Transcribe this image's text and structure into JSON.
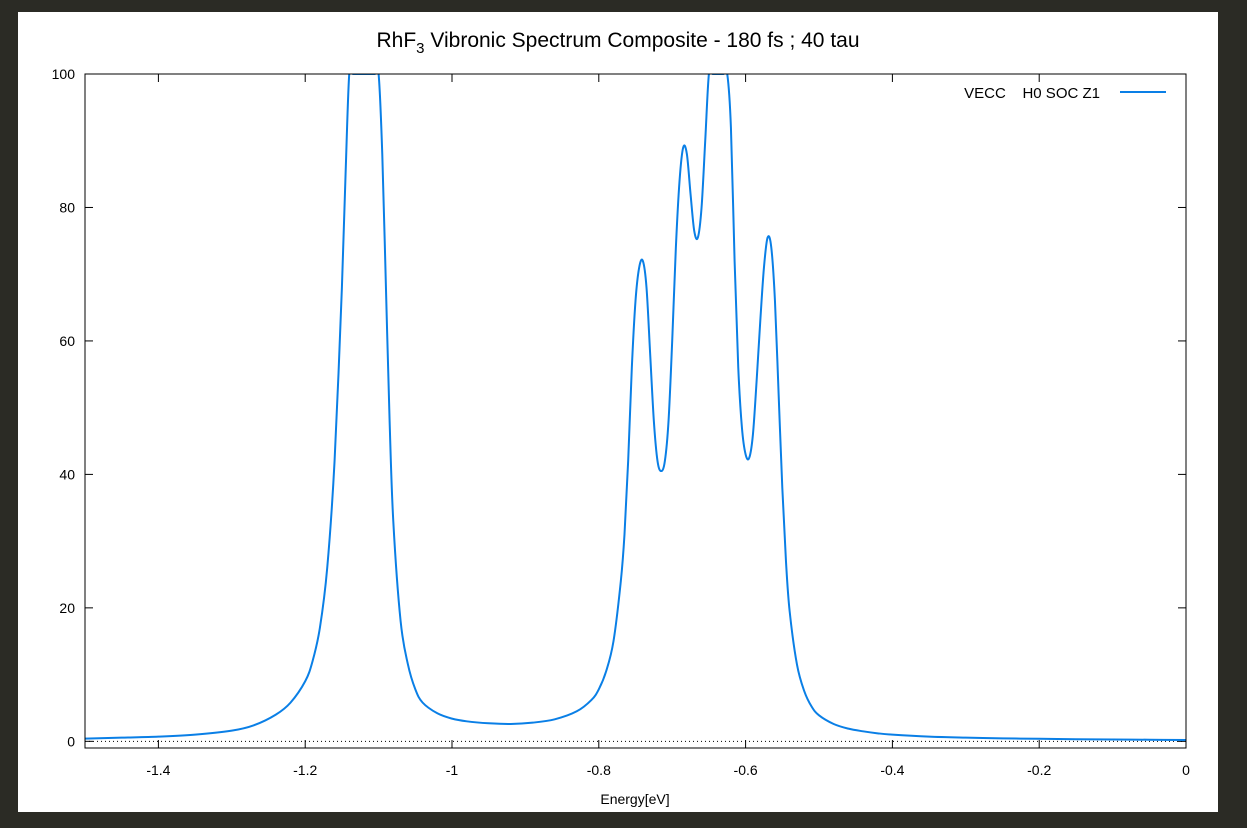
{
  "window": {
    "background": "#2b2b25",
    "panel_background": "#ffffff"
  },
  "chart_data": {
    "type": "line",
    "title_main": "RhF",
    "title_sub": "3",
    "title_rest": " Vibronic Spectrum Composite - 180 fs ; 40 tau",
    "xlabel": "Energy[eV]",
    "ylabel": "",
    "xlim": [
      -1.5,
      0.0
    ],
    "ylim": [
      -1,
      100
    ],
    "x_ticks": [
      -1.4,
      -1.2,
      -1.0,
      -0.8,
      -0.6,
      -0.4,
      -0.2,
      0.0
    ],
    "x_tick_labels": [
      "-1.4",
      "-1.2",
      "-1",
      "-0.8",
      "-0.6",
      "-0.4",
      "-0.2",
      "0"
    ],
    "y_ticks": [
      0,
      20,
      40,
      60,
      80,
      100
    ],
    "y_tick_labels": [
      "0",
      "20",
      "40",
      "60",
      "80",
      "100"
    ],
    "grid": false,
    "zero_line": true,
    "legend_position": "top-right",
    "series": [
      {
        "name": "VECC    H0 SOC Z1",
        "color": "#0a7fe6",
        "x": [
          -1.5,
          -1.45,
          -1.4,
          -1.35,
          -1.3,
          -1.27,
          -1.24,
          -1.22,
          -1.2,
          -1.19,
          -1.18,
          -1.17,
          -1.16,
          -1.15,
          -1.145,
          -1.14,
          -1.135,
          -1.13,
          -1.125,
          -1.115,
          -1.105,
          -1.1,
          -1.095,
          -1.09,
          -1.085,
          -1.08,
          -1.07,
          -1.06,
          -1.05,
          -1.04,
          -1.02,
          -1.0,
          -0.98,
          -0.95,
          -0.92,
          -0.89,
          -0.86,
          -0.83,
          -0.81,
          -0.8,
          -0.79,
          -0.78,
          -0.77,
          -0.765,
          -0.76,
          -0.755,
          -0.75,
          -0.745,
          -0.74,
          -0.735,
          -0.73,
          -0.725,
          -0.72,
          -0.715,
          -0.71,
          -0.705,
          -0.7,
          -0.695,
          -0.69,
          -0.685,
          -0.68,
          -0.675,
          -0.67,
          -0.665,
          -0.66,
          -0.655,
          -0.65,
          -0.645,
          -0.64,
          -0.635,
          -0.63,
          -0.625,
          -0.62,
          -0.615,
          -0.61,
          -0.605,
          -0.6,
          -0.595,
          -0.59,
          -0.585,
          -0.58,
          -0.575,
          -0.57,
          -0.565,
          -0.56,
          -0.555,
          -0.55,
          -0.545,
          -0.54,
          -0.53,
          -0.52,
          -0.51,
          -0.5,
          -0.48,
          -0.46,
          -0.44,
          -0.42,
          -0.4,
          -0.35,
          -0.3,
          -0.25,
          -0.2,
          -0.15,
          -0.1,
          -0.05,
          0.0
        ],
        "y": [
          0.4,
          0.55,
          0.7,
          1.0,
          1.6,
          2.4,
          4.0,
          5.8,
          9.0,
          12.0,
          17.0,
          26.0,
          42.0,
          68.0,
          85.0,
          100,
          100,
          100,
          100,
          100,
          100,
          100,
          88.0,
          68.0,
          48.0,
          33.0,
          18.0,
          11.5,
          7.8,
          5.8,
          4.2,
          3.4,
          3.0,
          2.7,
          2.6,
          2.8,
          3.3,
          4.5,
          6.2,
          7.8,
          10.5,
          15.0,
          24.0,
          31.0,
          42.0,
          56.0,
          66.0,
          71.0,
          72.0,
          68.0,
          58.0,
          48.0,
          42.0,
          40.5,
          42.0,
          48.0,
          60.0,
          74.0,
          84.0,
          89.0,
          88.0,
          82.0,
          76.5,
          75.5,
          80.0,
          90.0,
          100,
          100,
          100,
          100,
          100,
          100,
          92.0,
          72.0,
          56.0,
          47.0,
          43.0,
          42.5,
          46.0,
          54.0,
          63.0,
          71.0,
          75.5,
          74.0,
          66.0,
          52.0,
          38.0,
          27.0,
          19.5,
          11.5,
          7.5,
          5.2,
          3.9,
          2.6,
          1.9,
          1.5,
          1.2,
          1.0,
          0.7,
          0.55,
          0.45,
          0.38,
          0.32,
          0.28,
          0.24,
          0.2
        ]
      }
    ]
  }
}
